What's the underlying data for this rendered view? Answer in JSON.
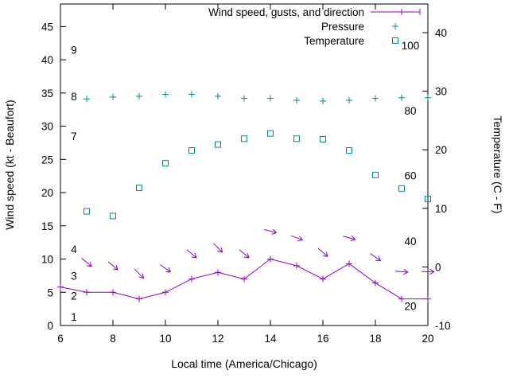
{
  "chart_data": {
    "type": "line",
    "title": "",
    "xlabel": "Local time (America/Chicago)",
    "x_range": [
      6,
      20
    ],
    "x_ticks": [
      6,
      8,
      10,
      12,
      14,
      16,
      18,
      20
    ],
    "grid": false,
    "legend_position": "top-inside",
    "y_left": {
      "label": "Wind speed (kt - Beaufort)",
      "range": [
        0,
        48.4
      ],
      "ticks": [
        0,
        5,
        10,
        15,
        20,
        25,
        30,
        35,
        40,
        45
      ],
      "inner_labels": [
        {
          "text": "1",
          "value": 1.3
        },
        {
          "text": "2",
          "value": 4.5
        },
        {
          "text": "3",
          "value": 7.5
        },
        {
          "text": "4",
          "value": 11.5
        },
        {
          "text": "7",
          "value": 28.5
        },
        {
          "text": "8",
          "value": 34.5
        },
        {
          "text": "9",
          "value": 41.5
        }
      ]
    },
    "y_right": {
      "label": "Temperature (C - F)",
      "range": [
        -10,
        44.9
      ],
      "ticks": [
        -10,
        0,
        10,
        20,
        30,
        40
      ],
      "inner_labels": [
        {
          "text": "20",
          "value": -6.7
        },
        {
          "text": "40",
          "value": 4.4
        },
        {
          "text": "60",
          "value": 15.6
        },
        {
          "text": "80",
          "value": 26.7
        },
        {
          "text": "100",
          "value": 37.8
        }
      ]
    },
    "legend": [
      {
        "label": "Wind speed, gusts, and direction",
        "marker": "line-plus",
        "color": "#9400D3"
      },
      {
        "label": "Pressure",
        "marker": "plus",
        "color": "#008B8B"
      },
      {
        "label": "Temperature",
        "marker": "square",
        "color": "#008B8B"
      }
    ],
    "series": {
      "wind_speed": {
        "name": "Wind speed",
        "axis": "left",
        "color": "#9400D3",
        "x": [
          6,
          7,
          8,
          9,
          10,
          11,
          12,
          13,
          14,
          15,
          16,
          17,
          18,
          19,
          20
        ],
        "values": [
          5.8,
          5,
          5,
          4,
          5,
          7,
          8,
          7,
          10,
          9,
          7,
          9.3,
          6.4,
          4,
          4
        ]
      },
      "wind_gusts": {
        "name": "Wind gusts and direction",
        "axis": "left",
        "color": "#9400D3",
        "points": [
          {
            "x": 7,
            "value": 9.5,
            "dir": 40
          },
          {
            "x": 8,
            "value": 9.0,
            "dir": 40
          },
          {
            "x": 9,
            "value": 7.8,
            "dir": 45
          },
          {
            "x": 10,
            "value": 8.6,
            "dir": 35
          },
          {
            "x": 11,
            "value": 10.8,
            "dir": 40
          },
          {
            "x": 12,
            "value": 11.7,
            "dir": 45
          },
          {
            "x": 13,
            "value": 10.8,
            "dir": 40
          },
          {
            "x": 14,
            "value": 14.2,
            "dir": 15
          },
          {
            "x": 15,
            "value": 13.2,
            "dir": 20
          },
          {
            "x": 16,
            "value": 11.0,
            "dir": 40
          },
          {
            "x": 17,
            "value": 13.2,
            "dir": 15
          },
          {
            "x": 18,
            "value": 10.3,
            "dir": 35
          },
          {
            "x": 19,
            "value": 8.1,
            "dir": 5
          },
          {
            "x": 20,
            "value": 8.1,
            "dir": 0
          }
        ]
      },
      "pressure": {
        "name": "Pressure",
        "axis": "left",
        "color": "#008B8B",
        "x": [
          7,
          8,
          9,
          10,
          11,
          12,
          13,
          14,
          15,
          16,
          17,
          18,
          19,
          20
        ],
        "values": [
          34.1,
          34.4,
          34.5,
          34.8,
          34.8,
          34.5,
          34.2,
          34.2,
          33.9,
          33.8,
          33.9,
          34.2,
          34.3,
          34.3
        ]
      },
      "temperature": {
        "name": "Temperature",
        "axis": "right",
        "color": "#008B8B",
        "x": [
          7,
          8,
          9,
          10,
          11,
          12,
          13,
          14,
          15,
          16,
          17,
          18,
          19,
          20
        ],
        "values": [
          9.5,
          8.7,
          13.5,
          17.7,
          19.9,
          20.9,
          21.9,
          22.8,
          21.9,
          21.8,
          19.9,
          15.7,
          13.4,
          11.6
        ]
      }
    }
  }
}
